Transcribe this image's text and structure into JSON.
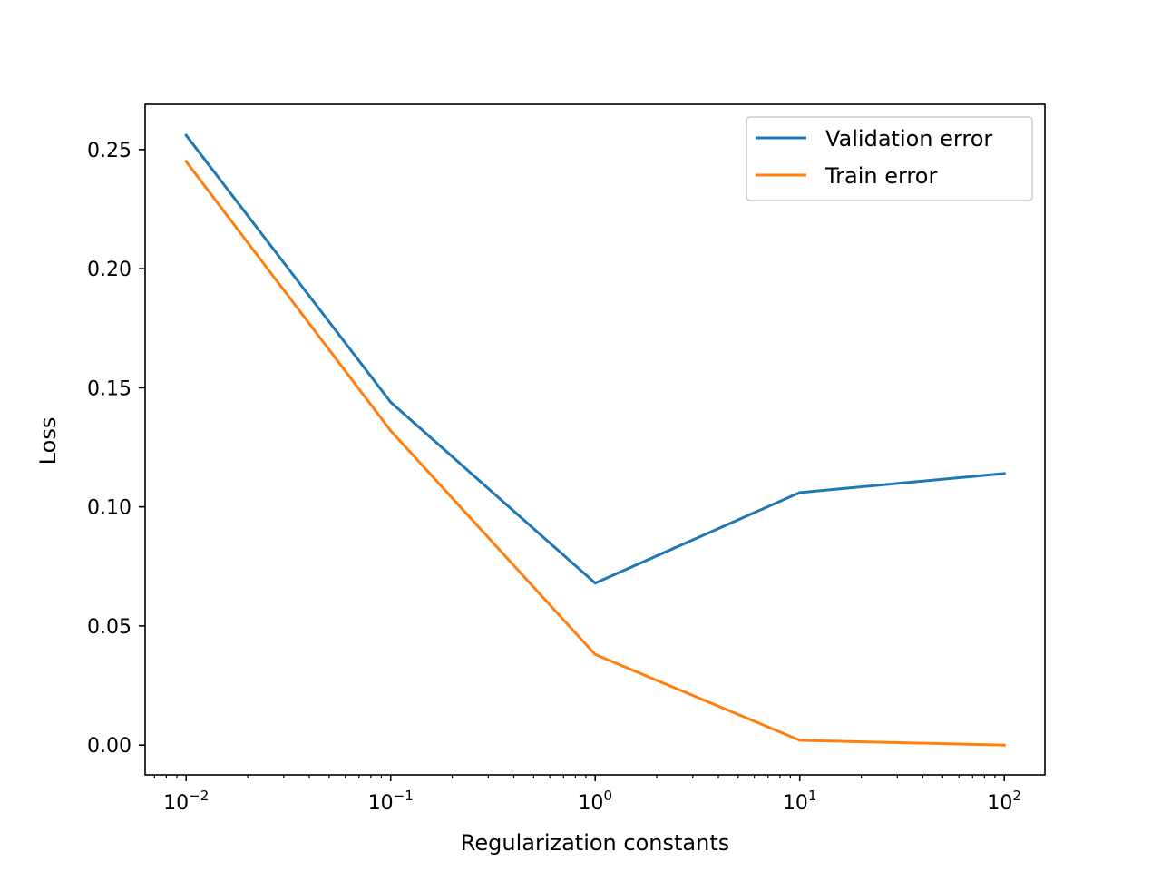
{
  "chart_data": {
    "type": "line",
    "xlabel": "Regularization constants",
    "ylabel": "Loss",
    "xscale": "log",
    "xlim": [
      0.0063,
      158
    ],
    "ylim": [
      -0.0125,
      0.269
    ],
    "x": [
      0.01,
      0.1,
      1,
      10,
      100
    ],
    "series": [
      {
        "name": "Validation error",
        "color": "#1f77b4",
        "values": [
          0.256,
          0.144,
          0.068,
          0.106,
          0.114
        ]
      },
      {
        "name": "Train error",
        "color": "#ff7f0e",
        "values": [
          0.245,
          0.132,
          0.038,
          0.002,
          0.0
        ]
      }
    ],
    "x_ticks": [
      {
        "value": 0.01,
        "base": "10",
        "exp": "−2"
      },
      {
        "value": 0.1,
        "base": "10",
        "exp": "−1"
      },
      {
        "value": 1,
        "base": "10",
        "exp": "0"
      },
      {
        "value": 10,
        "base": "10",
        "exp": "1"
      },
      {
        "value": 100,
        "base": "10",
        "exp": "2"
      }
    ],
    "y_ticks": [
      {
        "value": 0.0,
        "label": "0.00"
      },
      {
        "value": 0.05,
        "label": "0.05"
      },
      {
        "value": 0.1,
        "label": "0.10"
      },
      {
        "value": 0.15,
        "label": "0.15"
      },
      {
        "value": 0.2,
        "label": "0.20"
      },
      {
        "value": 0.25,
        "label": "0.25"
      }
    ],
    "legend_position": "top-right",
    "grid": false
  }
}
